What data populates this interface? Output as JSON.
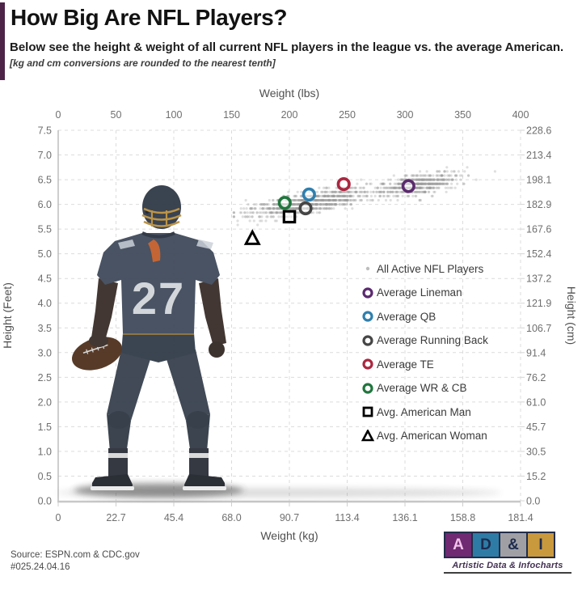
{
  "header": {
    "title": "How Big Are NFL Players?",
    "subtitle": "Below see the height & weight of all current NFL players in the league vs. the average American.",
    "note": "[kg and cm conversions are rounded to the nearest tenth]"
  },
  "illustration": {
    "jersey_number": "27"
  },
  "chart_data": {
    "type": "scatter",
    "x_axis_top": {
      "label": "Weight (lbs)",
      "ticks": [
        0,
        50,
        100,
        150,
        200,
        250,
        300,
        350,
        400
      ],
      "range": [
        0,
        400
      ]
    },
    "x_axis_bottom": {
      "label": "Weight (kg)",
      "ticks": [
        "0",
        "22.7",
        "45.4",
        "68.0",
        "90.7",
        "113.4",
        "136.1",
        "158.8",
        "181.4"
      ]
    },
    "y_axis_left": {
      "label": "Height (Feet)",
      "ticks": [
        "7.5",
        "7.0",
        "6.5",
        "6.0",
        "5.5",
        "5.0",
        "4.5",
        "4.0",
        "3.5",
        "3.0",
        "2.5",
        "2.0",
        "1.5",
        "1.0",
        "0.5",
        "0.0"
      ],
      "range": [
        0,
        7.5
      ]
    },
    "y_axis_right": {
      "label": "Height (cm)",
      "ticks": [
        "228.6",
        "213.4",
        "198.1",
        "182.9",
        "167.6",
        "152.4",
        "137.2",
        "121.9",
        "106.7",
        "91.4",
        "76.2",
        "61.0",
        "45.7",
        "30.5",
        "15.2",
        "0.0"
      ]
    },
    "grid": {
      "style": "dashed",
      "color": "#dcdcdc"
    },
    "legend_position": "middle-right",
    "cloud": {
      "name": "All Active NFL Players",
      "color": "#9a9a9a",
      "opacity": 0.32,
      "count": 1500,
      "seed": 7,
      "weight_mixture": [
        {
          "mean": 218,
          "sd": 26,
          "share": 0.62
        },
        {
          "mean": 311,
          "sd": 17,
          "share": 0.38
        }
      ],
      "weight_range_lbs": [
        152,
        390
      ],
      "height_model": {
        "intercept_ft": 5.18,
        "slope_ft_per_lb": 0.00393,
        "noise_sd_ft": 0.1,
        "range_ft": [
          5.55,
          6.75
        ]
      }
    },
    "markers": [
      {
        "name": "Average Lineman",
        "shape": "circle",
        "color": "#5b2a6e",
        "weight_lbs": 303,
        "height_ft": 6.37
      },
      {
        "name": "Average QB",
        "shape": "circle",
        "color": "#2f7fad",
        "weight_lbs": 217,
        "height_ft": 6.2
      },
      {
        "name": "Average Running Back",
        "shape": "circle",
        "color": "#454545",
        "weight_lbs": 214,
        "height_ft": 5.92
      },
      {
        "name": "Average TE",
        "shape": "circle",
        "color": "#ab2740",
        "weight_lbs": 247,
        "height_ft": 6.41
      },
      {
        "name": "Average WR & CB",
        "shape": "circle",
        "color": "#20763d",
        "weight_lbs": 196,
        "height_ft": 6.03
      },
      {
        "name": "Avg. American Man",
        "shape": "square",
        "color": "#000000",
        "weight_lbs": 200,
        "height_ft": 5.75
      },
      {
        "name": "Avg. American Woman",
        "shape": "triangle",
        "color": "#000000",
        "weight_lbs": 168,
        "height_ft": 5.3
      }
    ]
  },
  "footer": {
    "source_line1": "Source: ESPN.com & CDC.gov",
    "source_line2": "#025.24.04.16",
    "logo": {
      "blocks": [
        {
          "letter": "A",
          "bg": "#6f2a72",
          "fg": "#f2c4ea"
        },
        {
          "letter": "D",
          "bg": "#2e7ca6",
          "fg": "#1d2b4f"
        },
        {
          "letter": "&",
          "bg": "#a0a0a4",
          "fg": "#1d2b4f"
        },
        {
          "letter": "I",
          "bg": "#c9993d",
          "fg": "#1d2b4f"
        }
      ],
      "tagline": "Artistic Data & Infocharts"
    }
  }
}
